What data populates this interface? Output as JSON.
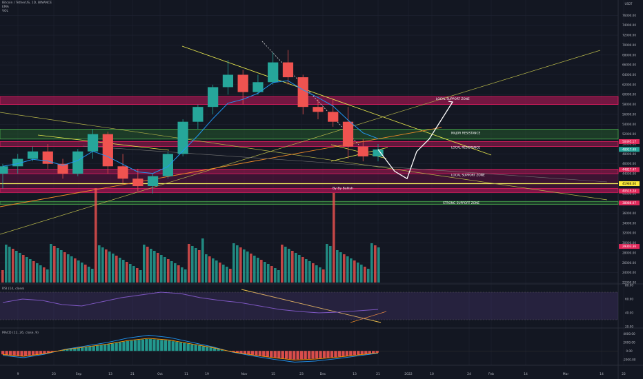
{
  "header": {
    "symbol_line": "Bitcoin / TetherUS, 1D, BINANCE",
    "indicators": [
      "EMA",
      "VOL"
    ]
  },
  "currency_label": "USDT",
  "price_axis": {
    "labels": [
      "76000.00",
      "74000.00",
      "72000.00",
      "70000.00",
      "68000.00",
      "66000.00",
      "64000.00",
      "62000.00",
      "60000.00",
      "58000.00",
      "56000.00",
      "54000.00",
      "52000.00",
      "50000.00",
      "48000.00",
      "46000.00",
      "44000.00",
      "42000.00",
      "40000.00",
      "38000.00",
      "36000.00",
      "34000.00",
      "32000.00",
      "30000.00",
      "28000.00",
      "26000.00",
      "24000.00",
      "22000.00"
    ],
    "markers": [
      {
        "text": "50495.17",
        "color": "#e0295b"
      },
      {
        "text": "48917.49",
        "color": "#26a69a"
      },
      {
        "text": "44817.47",
        "color": "#e0295b"
      },
      {
        "text": "41986.00",
        "color": "#ffeb3b"
      },
      {
        "text": "40515.24",
        "color": "#e0295b"
      },
      {
        "text": "38086.07",
        "color": "#e0295b"
      },
      {
        "text": "29303.36",
        "color": "#e0295b"
      }
    ]
  },
  "rsi": {
    "label": "RSI (14, close)",
    "axis": [
      "80.00",
      "60.00",
      "40.00",
      "20.00"
    ]
  },
  "macd": {
    "label": "MACD (12, 26, close, 9)",
    "axis": [
      "4000.00",
      "2000.00",
      "0.00",
      "-2000.00"
    ]
  },
  "time_axis": {
    "labels": [
      "9",
      "23",
      "Sep",
      "13",
      "21",
      "Oct",
      "11",
      "19",
      "Nov",
      "15",
      "23",
      "Dec",
      "13",
      "21",
      "2022",
      "10",
      "24",
      "Feb",
      "14",
      "Mar",
      "14",
      "22"
    ]
  },
  "zone_labels": {
    "local_support_top": "LOCAL SUPPORT ZONE",
    "major_resistance": "MAJOR RESISTANCE",
    "local_resistance": "LOCAL RESISTANCE",
    "local_support": "LOCAL SUPPORT ZONE",
    "strong_support": "STRONG SUPPORT ZONE",
    "author": "By By Bullish"
  },
  "colors": {
    "background": "#131722",
    "up": "#26a69a",
    "down": "#ef5350",
    "pink_zone": "#c2185b",
    "green_zone": "#2e7d32",
    "yellow": "#e6e64d",
    "ema": "#2196f3",
    "rsi": "#7e57c2"
  },
  "chart_data": {
    "type": "candlestick",
    "title": "Bitcoin / TetherUS, 1D, BINANCE",
    "y_unit": "USDT",
    "ylim": [
      22000,
      78000
    ],
    "price_candles_approx": [
      {
        "o": 44000,
        "h": 46000,
        "l": 41000,
        "c": 45500
      },
      {
        "o": 45500,
        "h": 48000,
        "l": 44000,
        "c": 47000
      },
      {
        "o": 47000,
        "h": 49500,
        "l": 46500,
        "c": 48500
      },
      {
        "o": 48500,
        "h": 50000,
        "l": 45000,
        "c": 46000
      },
      {
        "o": 46000,
        "h": 47000,
        "l": 43000,
        "c": 44000
      },
      {
        "o": 44000,
        "h": 49000,
        "l": 43500,
        "c": 48500
      },
      {
        "o": 48500,
        "h": 53000,
        "l": 47000,
        "c": 52000
      },
      {
        "o": 52000,
        "h": 52500,
        "l": 44000,
        "c": 45500
      },
      {
        "o": 45500,
        "h": 48000,
        "l": 42000,
        "c": 43000
      },
      {
        "o": 43000,
        "h": 45000,
        "l": 40500,
        "c": 41500
      },
      {
        "o": 41500,
        "h": 44000,
        "l": 40000,
        "c": 43500
      },
      {
        "o": 43500,
        "h": 48500,
        "l": 43000,
        "c": 48000
      },
      {
        "o": 48000,
        "h": 55000,
        "l": 47500,
        "c": 54500
      },
      {
        "o": 54500,
        "h": 58000,
        "l": 53000,
        "c": 57500
      },
      {
        "o": 57500,
        "h": 62000,
        "l": 56000,
        "c": 61500
      },
      {
        "o": 61500,
        "h": 67000,
        "l": 60000,
        "c": 64000
      },
      {
        "o": 64000,
        "h": 65000,
        "l": 58000,
        "c": 60500
      },
      {
        "o": 60500,
        "h": 64000,
        "l": 60000,
        "c": 62500
      },
      {
        "o": 62500,
        "h": 68500,
        "l": 62000,
        "c": 66500
      },
      {
        "o": 66500,
        "h": 69000,
        "l": 62000,
        "c": 63500
      },
      {
        "o": 63500,
        "h": 64000,
        "l": 56000,
        "c": 57500
      },
      {
        "o": 57500,
        "h": 59000,
        "l": 55000,
        "c": 56500
      },
      {
        "o": 56500,
        "h": 59000,
        "l": 53500,
        "c": 54500
      },
      {
        "o": 54500,
        "h": 57500,
        "l": 47000,
        "c": 49500
      },
      {
        "o": 49500,
        "h": 51000,
        "l": 46500,
        "c": 47500
      },
      {
        "o": 47500,
        "h": 50000,
        "l": 46500,
        "c": 48900
      }
    ],
    "forecast_path_usdt": [
      48900,
      44500,
      43000,
      48500,
      51000,
      58500
    ],
    "levels": {
      "local_support_top": [
        58000,
        59600
      ],
      "major_resistance": [
        51000,
        53000
      ],
      "local_resistance": [
        49500,
        50500
      ],
      "local_support": [
        44000,
        44900
      ],
      "yellow_line": 41986,
      "support_band": [
        40200,
        41000
      ],
      "strong_support": [
        37800,
        38400
      ]
    },
    "rsi_ylim": [
      20,
      80
    ],
    "rsi_approx": [
      55,
      60,
      58,
      52,
      50,
      56,
      62,
      66,
      70,
      68,
      62,
      58,
      55,
      50,
      45,
      42,
      40,
      41,
      43,
      45
    ],
    "macd_ylim": [
      -3000,
      5000
    ],
    "macd_hist_approx": [
      -800,
      -1200,
      -600,
      300,
      900,
      1500,
      2300,
      2800,
      2400,
      1600,
      800,
      -200,
      -900,
      -1500,
      -2000,
      -1800,
      -1400,
      -900,
      -400
    ]
  }
}
